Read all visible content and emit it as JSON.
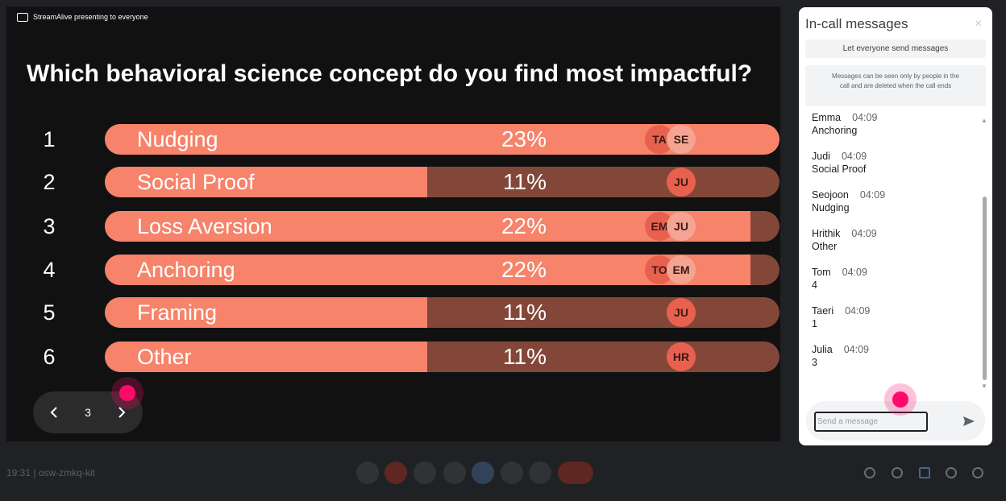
{
  "presenter_banner": "StreamAlive presenting to everyone",
  "poll": {
    "question": "Which behavioral science concept do you find most impactful?",
    "options": [
      {
        "number": "1",
        "label": "Nudging",
        "percent": 23,
        "percent_label": "23%",
        "avatars": [
          "TA",
          "SE"
        ]
      },
      {
        "number": "2",
        "label": "Social Proof",
        "percent": 11,
        "percent_label": "11%",
        "avatars": [
          "JU"
        ]
      },
      {
        "number": "3",
        "label": "Loss Aversion",
        "percent": 22,
        "percent_label": "22%",
        "avatars": [
          "EM",
          "JU"
        ]
      },
      {
        "number": "4",
        "label": "Anchoring",
        "percent": 22,
        "percent_label": "22%",
        "avatars": [
          "TO",
          "EM"
        ]
      },
      {
        "number": "5",
        "label": "Framing",
        "percent": 11,
        "percent_label": "11%",
        "avatars": [
          "JU"
        ]
      },
      {
        "number": "6",
        "label": "Other",
        "percent": 11,
        "percent_label": "11%",
        "avatars": [
          "HR"
        ]
      }
    ]
  },
  "pager": {
    "page": "3"
  },
  "chat": {
    "title": "In-call messages",
    "toggle_label": "Let everyone send messages",
    "notice": "Messages can be seen only by people in the call and are deleted when the call ends",
    "messages": [
      {
        "sender": "Emma",
        "time": "04:09",
        "text": "Anchoring"
      },
      {
        "sender": "Judi",
        "time": "04:09",
        "text": "Social Proof"
      },
      {
        "sender": "Seojoon",
        "time": "04:09",
        "text": "Nudging"
      },
      {
        "sender": "Hrithik",
        "time": "04:09",
        "text": "Other"
      },
      {
        "sender": "Tom",
        "time": "04:09",
        "text": "4"
      },
      {
        "sender": "Taeri",
        "time": "04:09",
        "text": "1"
      },
      {
        "sender": "Julia",
        "time": "04:09",
        "text": "3"
      }
    ],
    "input_placeholder": "Send a message"
  },
  "meeting": {
    "time": "19:31",
    "separator": "|",
    "code": "osw-zmkq-kit"
  }
}
